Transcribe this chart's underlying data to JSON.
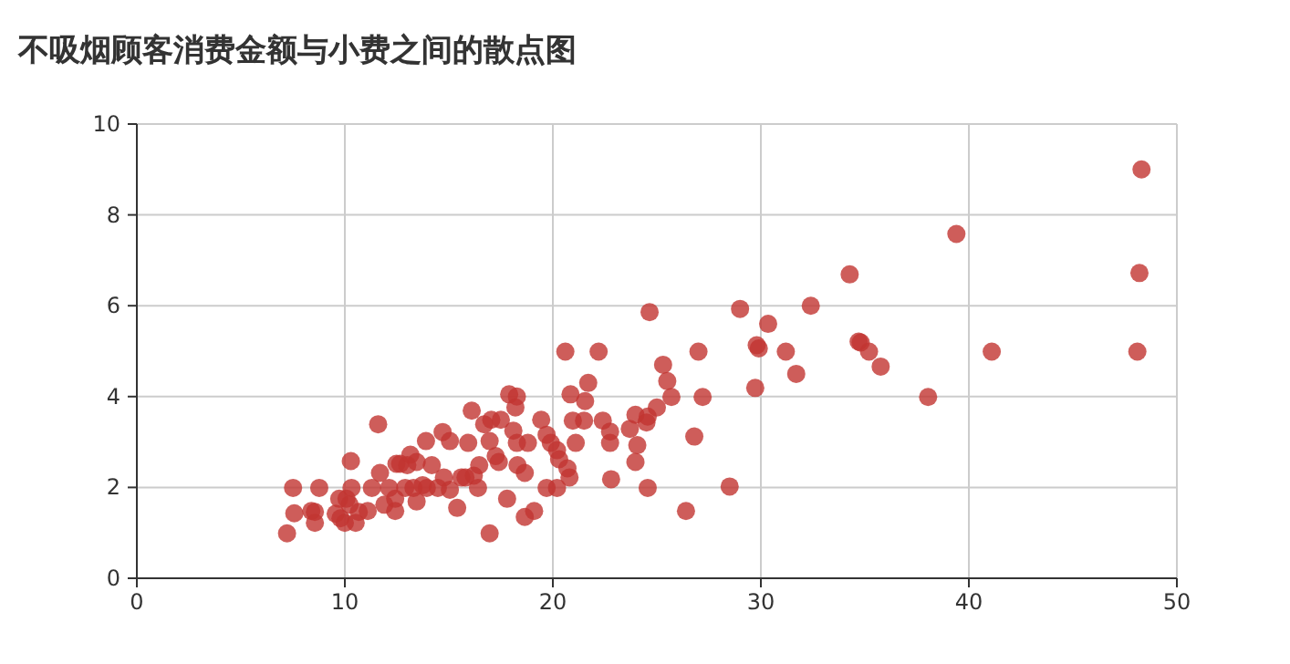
{
  "chart_data": {
    "type": "scatter",
    "title": "不吸烟顾客消费金额与小费之间的散点图",
    "marker": "circle",
    "grid": true,
    "xlim": [
      0,
      50
    ],
    "xticks": [
      0,
      10,
      20,
      30,
      40,
      50
    ],
    "ylim": [
      0,
      10
    ],
    "yticks": [
      0,
      2,
      4,
      6,
      8,
      10
    ],
    "series": [
      {
        "color": "#c23531",
        "x": [
          7.22,
          7.51,
          7.57,
          8.39,
          8.56,
          8.77,
          8.56,
          9.56,
          9.73,
          9.79,
          10.29,
          10.32,
          10.08,
          10.23,
          10.0,
          10.52,
          10.67,
          11.1,
          11.3,
          11.6,
          11.69,
          11.9,
          12.13,
          12.42,
          12.48,
          12.66,
          12.42,
          12.9,
          13.15,
          13.45,
          13.3,
          13.9,
          13.94,
          14.18,
          14.7,
          14.76,
          15.05,
          14.47,
          15.05,
          15.4,
          15.8,
          16.1,
          15.93,
          13.45,
          13.0,
          13.74,
          16.2,
          16.46,
          16.4,
          15.6,
          16.96,
          16.7,
          17.04,
          17.5,
          16.96,
          17.25,
          17.4,
          17.9,
          18.27,
          18.2,
          18.1,
          18.27,
          18.8,
          18.3,
          18.65,
          17.8,
          18.65,
          19.1,
          19.44,
          19.7,
          19.9,
          20.2,
          20.3,
          20.7,
          20.8,
          19.7,
          20.2,
          20.6,
          20.85,
          20.96,
          21.1,
          21.5,
          21.55,
          21.7,
          22.2,
          22.4,
          22.75,
          22.75,
          22.8,
          23.7,
          24.06,
          23.97,
          23.97,
          24.5,
          24.56,
          25.0,
          24.56,
          24.65,
          25.3,
          25.5,
          25.7,
          26.4,
          26.8,
          27.0,
          27.2,
          28.5,
          29.0,
          29.8,
          29.9,
          29.73,
          30.35,
          31.2,
          31.7,
          32.4,
          34.27,
          34.8,
          34.7,
          35.2,
          35.76,
          38.04,
          39.4,
          41.1,
          48.1,
          48.2,
          48.3
        ],
        "values": [
          0.99,
          1.99,
          1.43,
          1.48,
          1.22,
          1.99,
          1.46,
          1.42,
          1.75,
          1.32,
          2.58,
          1.99,
          1.75,
          1.62,
          1.22,
          1.22,
          1.46,
          1.48,
          1.99,
          3.39,
          2.32,
          1.62,
          1.99,
          1.48,
          2.52,
          2.52,
          1.75,
          1.99,
          2.72,
          1.69,
          1.99,
          3.02,
          1.99,
          2.49,
          3.22,
          2.22,
          3.02,
          1.99,
          1.95,
          1.55,
          2.22,
          3.69,
          2.98,
          2.56,
          2.49,
          2.05,
          2.26,
          2.49,
          1.99,
          2.22,
          0.99,
          3.39,
          3.49,
          3.49,
          3.02,
          2.69,
          2.56,
          4.05,
          4.0,
          3.76,
          3.25,
          2.98,
          2.98,
          2.49,
          2.32,
          1.75,
          1.35,
          1.48,
          3.49,
          3.16,
          2.98,
          2.82,
          2.62,
          2.42,
          2.22,
          1.99,
          1.99,
          4.99,
          4.05,
          3.47,
          2.98,
          3.47,
          3.9,
          4.3,
          4.99,
          3.47,
          3.23,
          2.98,
          2.18,
          3.29,
          2.93,
          2.56,
          3.6,
          3.43,
          3.56,
          3.76,
          1.99,
          5.86,
          4.7,
          4.34,
          3.99,
          1.48,
          3.12,
          4.99,
          3.99,
          2.02,
          5.93,
          5.13,
          5.06,
          4.19,
          5.6,
          4.99,
          4.5,
          6.0,
          6.69,
          5.19,
          5.21,
          4.99,
          4.66,
          3.99,
          7.58,
          4.99,
          4.99,
          6.72,
          9.0
        ]
      }
    ]
  }
}
